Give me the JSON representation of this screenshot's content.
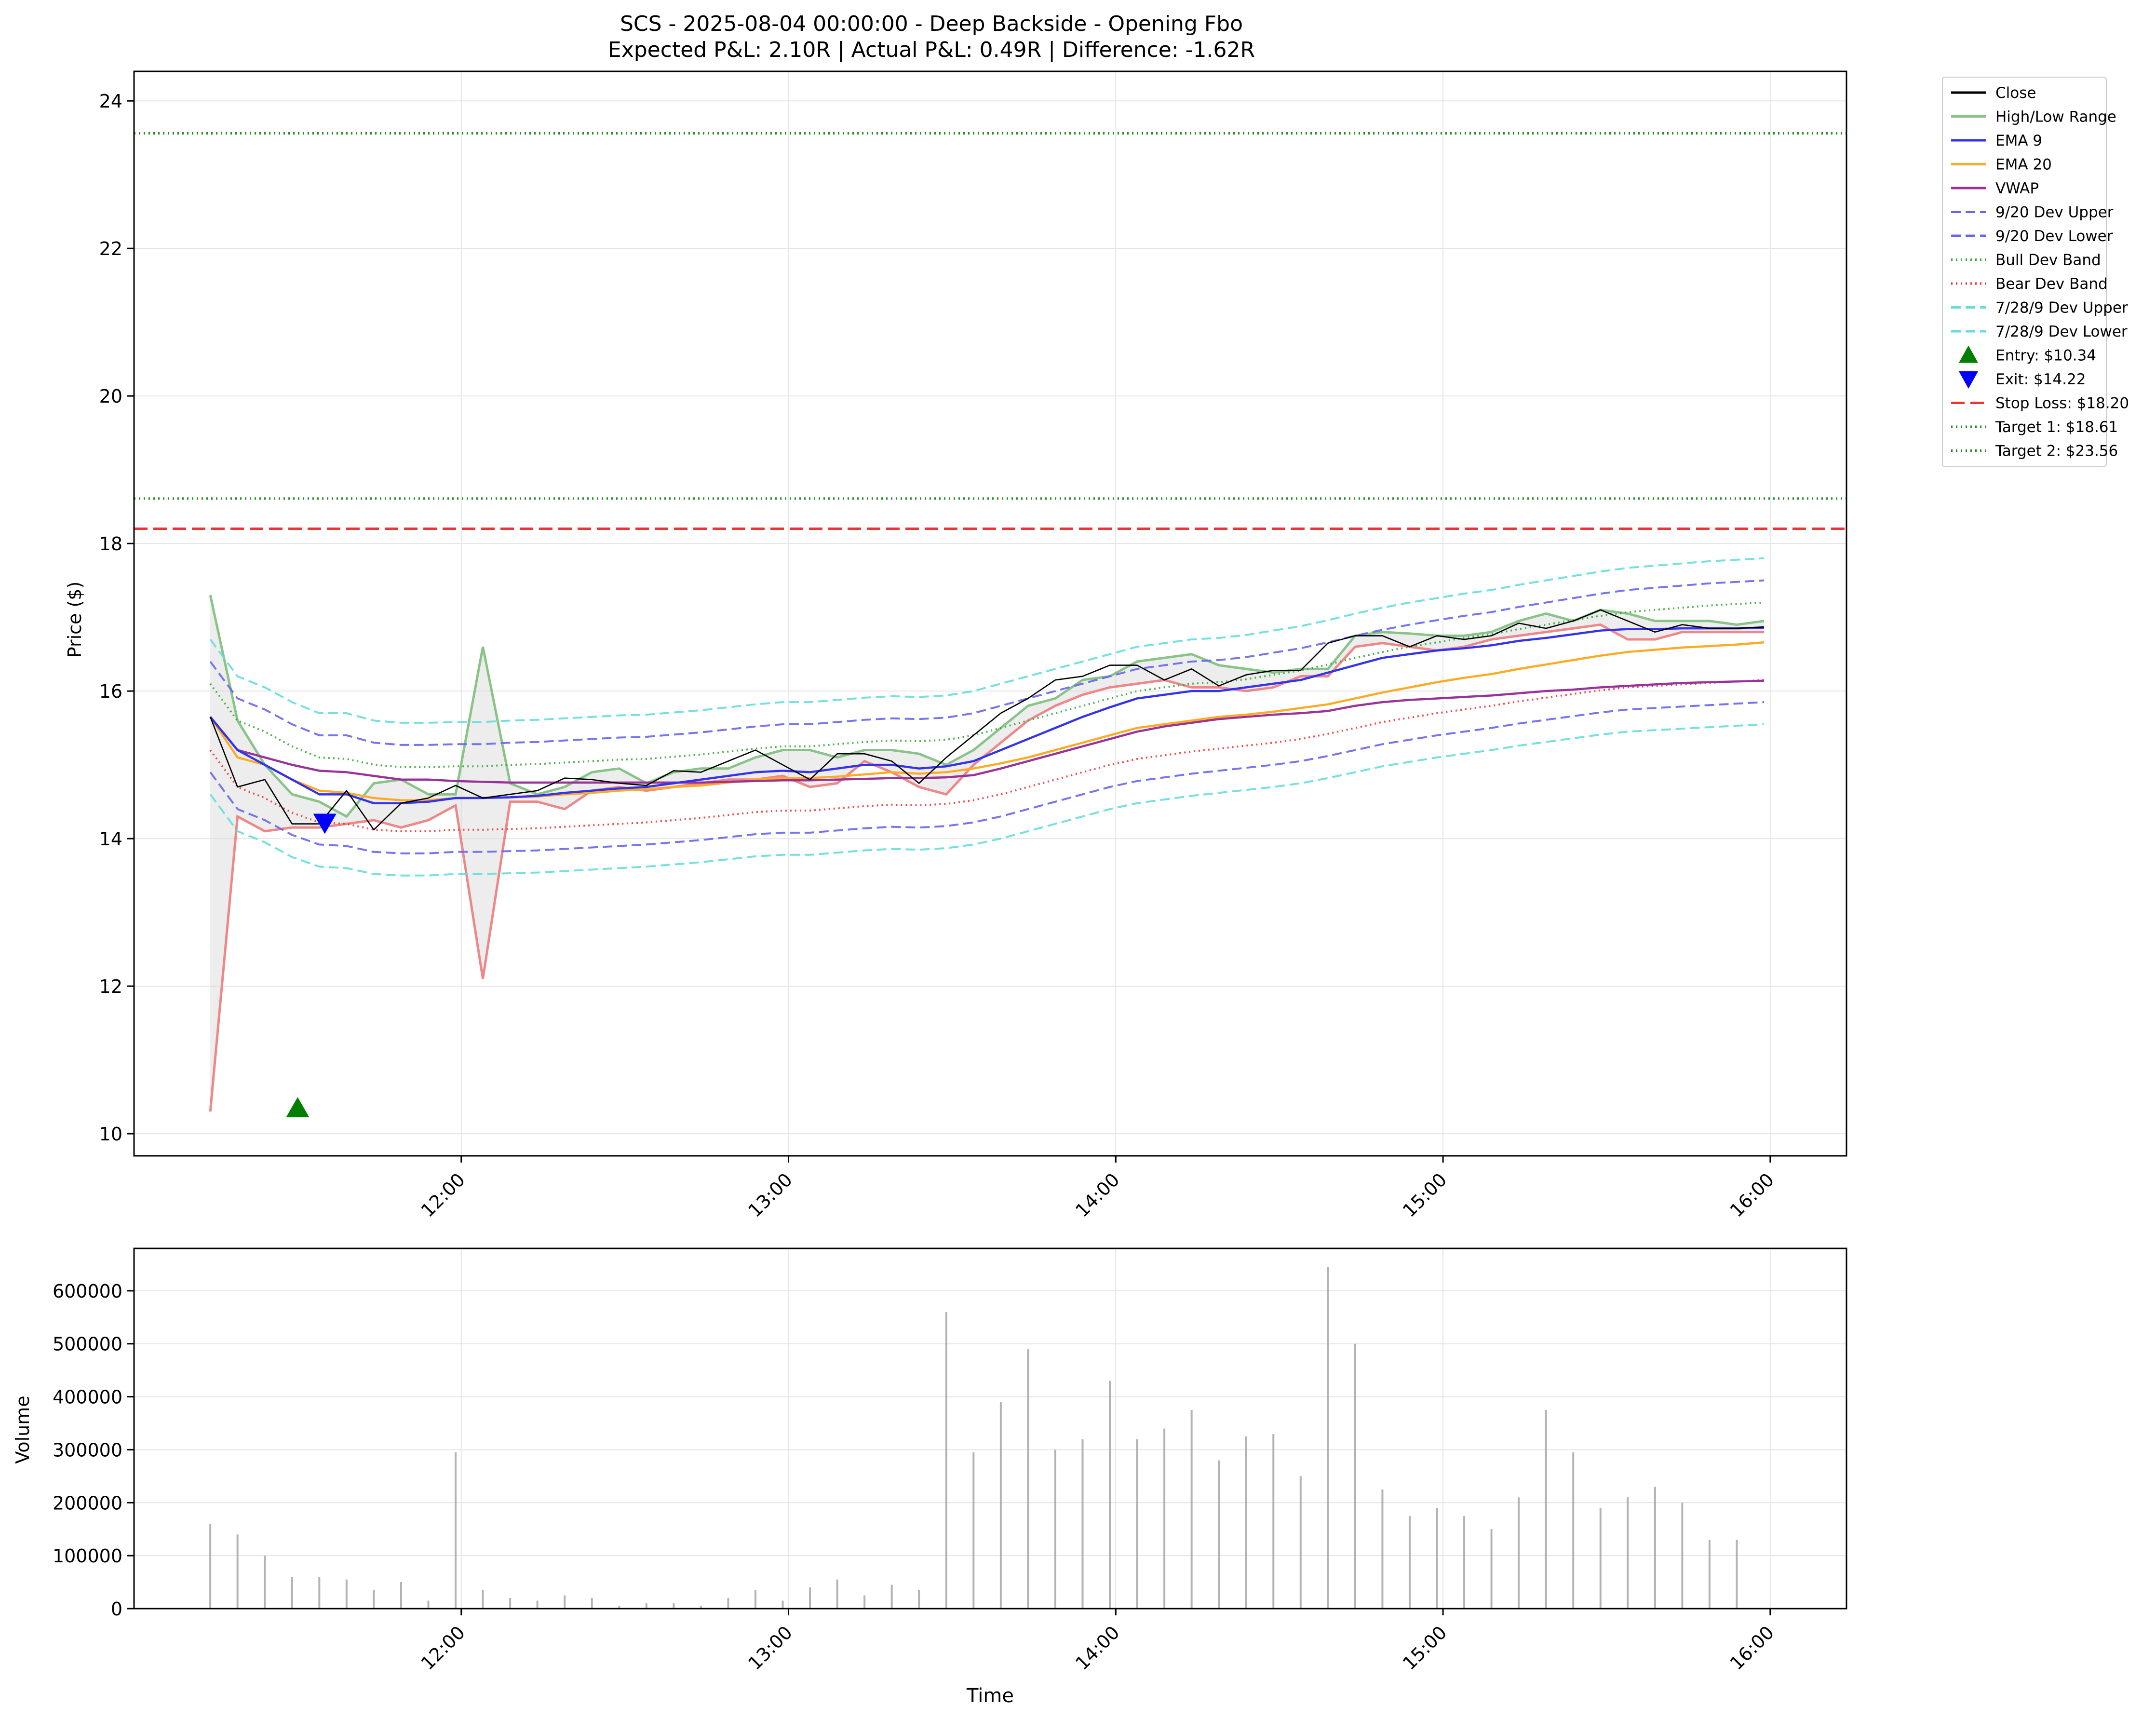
{
  "chart_data": {
    "type": "line",
    "title": "SCS - 2025-08-04 00:00:00 - Deep Backside - Opening Fbo",
    "subtitle": "Expected P&L: 2.10R | Actual P&L: 0.49R | Difference: -1.62R",
    "price_panel": {
      "ylabel": "Price ($)",
      "ylim": [
        9.7,
        24.4
      ],
      "yticks": [
        10,
        12,
        14,
        16,
        18,
        20,
        22,
        24
      ],
      "xlim": [
        11.0,
        16.233
      ],
      "x_start": 11.233,
      "x_step": 0.0833,
      "xticks": [
        12,
        13,
        14,
        15,
        16
      ],
      "xticklabels": [
        "12:00",
        "13:00",
        "14:00",
        "15:00",
        "16:00"
      ],
      "grid": true,
      "legend_position": "outside-top-right",
      "high": [
        17.3,
        15.6,
        15.0,
        14.6,
        14.5,
        14.3,
        14.75,
        14.8,
        14.6,
        14.6,
        16.6,
        14.75,
        14.6,
        14.7,
        14.9,
        14.95,
        14.75,
        14.9,
        14.95,
        14.95,
        15.1,
        15.2,
        15.2,
        15.1,
        15.2,
        15.2,
        15.15,
        15.0,
        15.2,
        15.5,
        15.8,
        15.9,
        16.15,
        16.2,
        16.4,
        16.45,
        16.5,
        16.35,
        16.3,
        16.25,
        16.3,
        16.3,
        16.75,
        16.8,
        16.78,
        16.75,
        16.75,
        16.8,
        16.95,
        17.05,
        16.95,
        17.1,
        17.05,
        16.95,
        16.95,
        16.95,
        16.9,
        16.95
      ],
      "low": [
        10.3,
        14.3,
        14.1,
        14.15,
        14.15,
        14.2,
        14.25,
        14.15,
        14.25,
        14.45,
        12.1,
        14.5,
        14.5,
        14.4,
        14.65,
        14.7,
        14.65,
        14.7,
        14.75,
        14.8,
        14.8,
        14.85,
        14.7,
        14.75,
        15.05,
        14.9,
        14.7,
        14.6,
        15.0,
        15.3,
        15.6,
        15.8,
        15.95,
        16.05,
        16.1,
        16.15,
        16.05,
        16.05,
        16.0,
        16.05,
        16.2,
        16.2,
        16.6,
        16.65,
        16.6,
        16.55,
        16.6,
        16.7,
        16.75,
        16.8,
        16.85,
        16.9,
        16.7,
        16.7,
        16.8,
        16.8,
        16.8,
        16.8
      ],
      "series": [
        {
          "name": "Close",
          "color": "#000000",
          "width": 2.6,
          "dash": "",
          "values": [
            15.65,
            14.7,
            14.8,
            14.2,
            14.2,
            14.65,
            14.12,
            14.48,
            14.55,
            14.72,
            14.55,
            14.6,
            14.65,
            14.82,
            14.8,
            14.75,
            14.72,
            14.92,
            14.9,
            15.05,
            15.2,
            15.0,
            14.8,
            15.15,
            15.15,
            15.05,
            14.75,
            15.1,
            15.4,
            15.7,
            15.9,
            16.15,
            16.2,
            16.35,
            16.35,
            16.15,
            16.3,
            16.07,
            16.22,
            16.28,
            16.28,
            16.65,
            16.75,
            16.75,
            16.6,
            16.75,
            16.7,
            16.75,
            16.92,
            16.85,
            16.95,
            17.1,
            16.95,
            16.8,
            16.9,
            16.85,
            16.85,
            16.87
          ]
        },
        {
          "name": "EMA 9",
          "color": "#3333ee",
          "width": 4.5,
          "dash": "",
          "values": [
            15.65,
            15.2,
            15.0,
            14.8,
            14.6,
            14.6,
            14.48,
            14.48,
            14.5,
            14.55,
            14.55,
            14.56,
            14.58,
            14.62,
            14.65,
            14.68,
            14.7,
            14.75,
            14.8,
            14.85,
            14.9,
            14.92,
            14.9,
            14.95,
            15.0,
            15.0,
            14.95,
            14.98,
            15.05,
            15.2,
            15.35,
            15.5,
            15.65,
            15.78,
            15.9,
            15.95,
            16.0,
            16.0,
            16.05,
            16.1,
            16.15,
            16.25,
            16.35,
            16.45,
            16.5,
            16.55,
            16.58,
            16.62,
            16.68,
            16.72,
            16.77,
            16.82,
            16.84,
            16.84,
            16.85,
            16.85,
            16.85,
            16.86
          ]
        },
        {
          "name": "EMA 20",
          "color": "#ffaa22",
          "width": 4.5,
          "dash": "",
          "values": [
            15.65,
            15.1,
            15.0,
            14.8,
            14.65,
            14.62,
            14.55,
            14.52,
            14.52,
            14.55,
            14.55,
            14.56,
            14.57,
            14.6,
            14.62,
            14.65,
            14.67,
            14.7,
            14.72,
            14.76,
            14.8,
            14.82,
            14.82,
            14.84,
            14.87,
            14.9,
            14.88,
            14.9,
            14.95,
            15.02,
            15.1,
            15.2,
            15.3,
            15.4,
            15.5,
            15.55,
            15.6,
            15.65,
            15.68,
            15.72,
            15.77,
            15.82,
            15.9,
            15.98,
            16.05,
            16.12,
            16.18,
            16.23,
            16.3,
            16.36,
            16.42,
            16.48,
            16.53,
            16.56,
            16.59,
            16.61,
            16.63,
            16.66
          ]
        },
        {
          "name": "VWAP",
          "color": "#993399",
          "width": 4.5,
          "dash": "",
          "values": [
            15.65,
            15.2,
            15.1,
            15.0,
            14.92,
            14.9,
            14.85,
            14.8,
            14.8,
            14.78,
            14.77,
            14.76,
            14.76,
            14.76,
            14.76,
            14.76,
            14.76,
            14.76,
            14.76,
            14.77,
            14.78,
            14.79,
            14.79,
            14.8,
            14.81,
            14.82,
            14.82,
            14.83,
            14.86,
            14.95,
            15.05,
            15.15,
            15.25,
            15.35,
            15.45,
            15.52,
            15.57,
            15.62,
            15.65,
            15.68,
            15.7,
            15.73,
            15.8,
            15.85,
            15.88,
            15.9,
            15.92,
            15.94,
            15.97,
            16.0,
            16.02,
            16.05,
            16.07,
            16.09,
            16.11,
            16.12,
            16.13,
            16.14
          ]
        },
        {
          "name": "9/20 Dev Upper",
          "color": "#6666ee",
          "width": 4.0,
          "dash": "20,10",
          "values": [
            16.4,
            15.9,
            15.75,
            15.55,
            15.4,
            15.4,
            15.3,
            15.27,
            15.27,
            15.28,
            15.28,
            15.3,
            15.31,
            15.33,
            15.35,
            15.37,
            15.38,
            15.41,
            15.44,
            15.48,
            15.52,
            15.55,
            15.55,
            15.58,
            15.61,
            15.63,
            15.62,
            15.64,
            15.7,
            15.8,
            15.9,
            16.0,
            16.1,
            16.2,
            16.3,
            16.35,
            16.4,
            16.42,
            16.46,
            16.52,
            16.58,
            16.66,
            16.75,
            16.83,
            16.9,
            16.96,
            17.02,
            17.07,
            17.14,
            17.2,
            17.26,
            17.32,
            17.37,
            17.4,
            17.43,
            17.46,
            17.48,
            17.5
          ]
        },
        {
          "name": "9/20 Dev Lower",
          "color": "#6666ee",
          "width": 4.0,
          "dash": "20,10",
          "values": [
            14.9,
            14.4,
            14.25,
            14.05,
            13.92,
            13.9,
            13.82,
            13.8,
            13.8,
            13.82,
            13.82,
            13.83,
            13.84,
            13.86,
            13.88,
            13.9,
            13.92,
            13.95,
            13.98,
            14.02,
            14.06,
            14.08,
            14.08,
            14.11,
            14.14,
            14.16,
            14.15,
            14.17,
            14.22,
            14.3,
            14.4,
            14.5,
            14.6,
            14.7,
            14.78,
            14.83,
            14.88,
            14.92,
            14.96,
            15.0,
            15.05,
            15.12,
            15.2,
            15.28,
            15.34,
            15.4,
            15.45,
            15.5,
            15.56,
            15.61,
            15.66,
            15.71,
            15.75,
            15.77,
            15.79,
            15.81,
            15.83,
            15.85
          ]
        },
        {
          "name": "Bull Dev Band",
          "color": "#33aa33",
          "width": 4.0,
          "dash": "3,7",
          "values": [
            16.1,
            15.6,
            15.45,
            15.25,
            15.1,
            15.08,
            15.0,
            14.97,
            14.97,
            14.98,
            14.98,
            15.0,
            15.01,
            15.03,
            15.05,
            15.07,
            15.08,
            15.11,
            15.14,
            15.18,
            15.22,
            15.25,
            15.25,
            15.28,
            15.31,
            15.33,
            15.32,
            15.34,
            15.4,
            15.5,
            15.6,
            15.7,
            15.8,
            15.9,
            16.0,
            16.05,
            16.1,
            16.12,
            16.16,
            16.22,
            16.28,
            16.36,
            16.45,
            16.53,
            16.6,
            16.66,
            16.72,
            16.77,
            16.84,
            16.9,
            16.96,
            17.02,
            17.07,
            17.1,
            17.13,
            17.16,
            17.18,
            17.2
          ]
        },
        {
          "name": "Bear Dev Band",
          "color": "#ee3333",
          "width": 4.0,
          "dash": "3,7",
          "values": [
            15.2,
            14.7,
            14.55,
            14.35,
            14.22,
            14.2,
            14.12,
            14.1,
            14.1,
            14.12,
            14.12,
            14.13,
            14.14,
            14.16,
            14.18,
            14.2,
            14.22,
            14.25,
            14.28,
            14.32,
            14.36,
            14.38,
            14.38,
            14.41,
            14.44,
            14.46,
            14.45,
            14.47,
            14.52,
            14.6,
            14.7,
            14.8,
            14.9,
            15.0,
            15.08,
            15.13,
            15.18,
            15.22,
            15.26,
            15.3,
            15.35,
            15.42,
            15.5,
            15.58,
            15.64,
            15.7,
            15.75,
            15.8,
            15.86,
            15.91,
            15.96,
            16.01,
            16.05,
            16.07,
            16.09,
            16.11,
            16.13,
            16.15
          ]
        },
        {
          "name": "7/28/9 Dev Upper",
          "color": "#66dddd",
          "width": 4.0,
          "dash": "20,10",
          "values": [
            16.7,
            16.2,
            16.05,
            15.85,
            15.7,
            15.7,
            15.6,
            15.57,
            15.57,
            15.58,
            15.58,
            15.6,
            15.61,
            15.63,
            15.65,
            15.67,
            15.68,
            15.71,
            15.74,
            15.78,
            15.82,
            15.85,
            15.85,
            15.88,
            15.91,
            15.93,
            15.92,
            15.94,
            16.0,
            16.1,
            16.2,
            16.3,
            16.4,
            16.5,
            16.6,
            16.65,
            16.7,
            16.72,
            16.76,
            16.82,
            16.88,
            16.96,
            17.05,
            17.13,
            17.2,
            17.26,
            17.32,
            17.37,
            17.44,
            17.5,
            17.56,
            17.62,
            17.67,
            17.7,
            17.73,
            17.76,
            17.78,
            17.8
          ]
        },
        {
          "name": "7/28/9 Dev Lower",
          "color": "#66dddd",
          "width": 4.0,
          "dash": "20,10",
          "values": [
            14.6,
            14.1,
            13.95,
            13.75,
            13.62,
            13.6,
            13.52,
            13.5,
            13.5,
            13.52,
            13.52,
            13.53,
            13.54,
            13.56,
            13.58,
            13.6,
            13.62,
            13.65,
            13.68,
            13.72,
            13.76,
            13.78,
            13.78,
            13.81,
            13.84,
            13.86,
            13.85,
            13.87,
            13.92,
            14.0,
            14.1,
            14.2,
            14.3,
            14.4,
            14.48,
            14.53,
            14.58,
            14.62,
            14.66,
            14.7,
            14.75,
            14.82,
            14.9,
            14.98,
            15.04,
            15.1,
            15.15,
            15.2,
            15.26,
            15.31,
            15.36,
            15.41,
            15.45,
            15.47,
            15.49,
            15.51,
            15.53,
            15.55
          ]
        }
      ],
      "range_series_name": "High/Low Range",
      "range_colors": {
        "high": "#88c488",
        "low": "#ee8888",
        "fill": "#d8d8d8"
      },
      "entry": {
        "label": "Entry: $10.34",
        "x": 11.5,
        "price": 10.34,
        "color": "#008000"
      },
      "exit": {
        "label": "Exit: $14.22",
        "x": 11.583,
        "price": 14.22,
        "color": "#0000ff"
      },
      "levels": [
        {
          "label": "Stop Loss: $18.20",
          "price": 18.2,
          "color": "#ee3333",
          "dash": "28,12"
        },
        {
          "label": "Target 1: $18.61",
          "price": 18.61,
          "color": "#228b22",
          "dash": "3,7"
        },
        {
          "label": "Target 2: $23.56",
          "price": 23.56,
          "color": "#228b22",
          "dash": "3,7"
        }
      ]
    },
    "volume_panel": {
      "ylabel": "Volume",
      "xlabel": "Time",
      "ylim": [
        0,
        680000
      ],
      "yticks": [
        0,
        100000,
        200000,
        300000,
        400000,
        500000,
        600000
      ],
      "grid": true,
      "bar_color": "#999999",
      "values": [
        160000,
        140000,
        100000,
        60000,
        60000,
        55000,
        35000,
        50000,
        15000,
        295000,
        35000,
        20000,
        15000,
        25000,
        20000,
        5000,
        10000,
        10000,
        5000,
        20000,
        35000,
        15000,
        40000,
        55000,
        25000,
        45000,
        35000,
        560000,
        295000,
        390000,
        490000,
        300000,
        320000,
        430000,
        320000,
        340000,
        375000,
        280000,
        325000,
        330000,
        250000,
        645000,
        500000,
        225000,
        175000,
        190000,
        175000,
        150000,
        210000,
        375000,
        295000,
        190000,
        210000,
        230000,
        200000,
        130000,
        130000,
        0
      ]
    }
  }
}
